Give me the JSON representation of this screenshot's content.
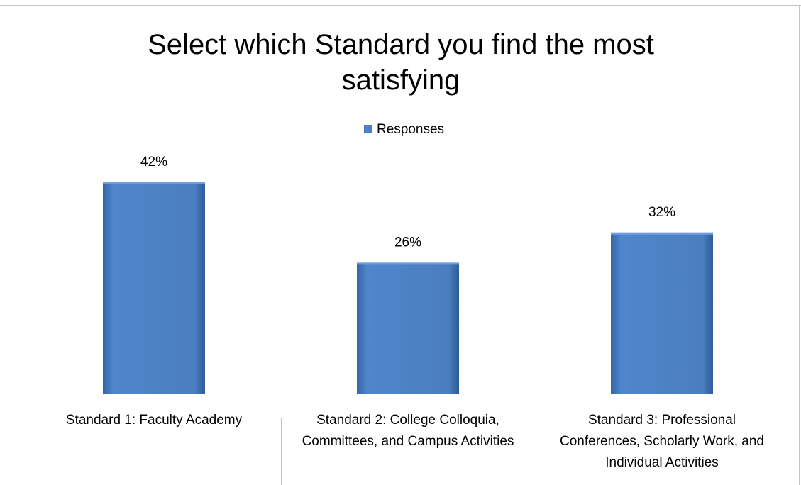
{
  "chart_data": {
    "type": "bar",
    "title": "Select which Standard you find the most satisfying",
    "categories": [
      "Standard 1: Faculty Academy",
      "Standard 2: College Colloquia, Committees, and Campus Activities",
      "Standard 3: Professional Conferences, Scholarly Work, and Individual Activities"
    ],
    "series": [
      {
        "name": "Responses",
        "color": "#4a7ebf",
        "values": [
          42,
          26,
          32
        ],
        "value_labels": [
          "42%",
          "26%",
          "32%"
        ]
      }
    ]
  }
}
